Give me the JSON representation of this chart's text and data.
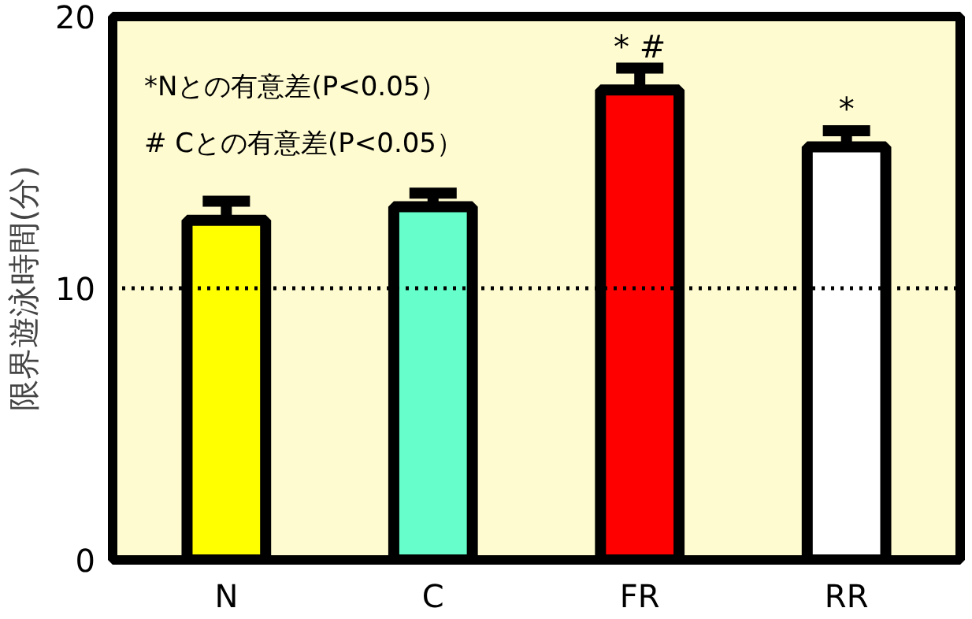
{
  "chart_data": {
    "type": "bar",
    "ylabel": "限界遊泳時間(分)",
    "categories": [
      "N",
      "C",
      "FR",
      "RR"
    ],
    "values": [
      12.5,
      13.0,
      17.3,
      15.2
    ],
    "colors": [
      "#ffff00",
      "#66ffcc",
      "#ff0000",
      "#ffffff"
    ],
    "errors": [
      0.7,
      0.5,
      0.8,
      0.6
    ],
    "ylim": [
      0,
      20
    ],
    "yticks": [
      0,
      10,
      20
    ],
    "grid": false,
    "ref_lines": [
      {
        "axis": "y",
        "value": 10,
        "line_style": "dotted",
        "color": "#000000"
      }
    ],
    "annotations": [
      "*Nとの有意差(P<0.05）",
      "# Cとの有意差(P<0.05）",
      "* #",
      "*"
    ]
  }
}
